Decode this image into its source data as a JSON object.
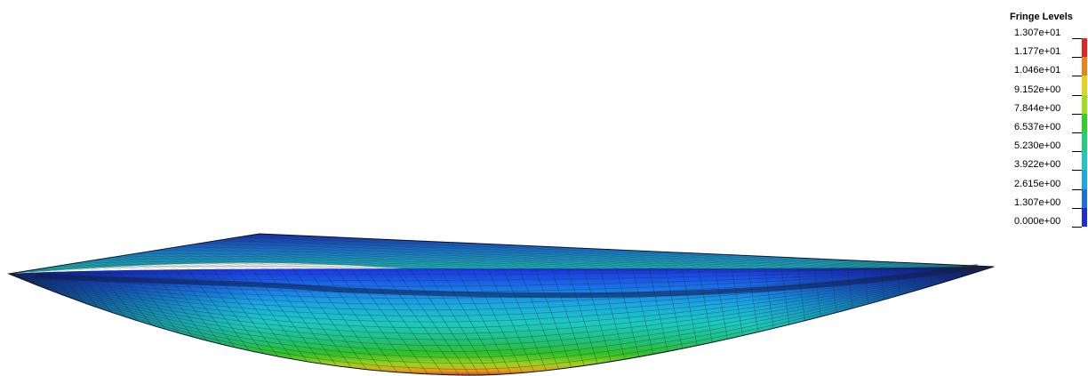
{
  "legend": {
    "title": "Fringe Levels",
    "levels": [
      {
        "label": "1.307e+01",
        "value": 13.07
      },
      {
        "label": "1.177e+01",
        "value": 11.77
      },
      {
        "label": "1.046e+01",
        "value": 10.46
      },
      {
        "label": "9.152e+00",
        "value": 9.152
      },
      {
        "label": "7.844e+00",
        "value": 7.844
      },
      {
        "label": "6.537e+00",
        "value": 6.537
      },
      {
        "label": "5.230e+00",
        "value": 5.23
      },
      {
        "label": "3.922e+00",
        "value": 3.922
      },
      {
        "label": "2.615e+00",
        "value": 2.615
      },
      {
        "label": "1.307e+00",
        "value": 1.307
      },
      {
        "label": "0.000e+00",
        "value": 0.0
      }
    ],
    "band_colors": [
      "#e8241c",
      "#f07f1a",
      "#e6d21e",
      "#9fe01c",
      "#2fd02a",
      "#20d07c",
      "#1ec8c0",
      "#1aa8e0",
      "#1a6ee8",
      "#1a2ee0"
    ]
  },
  "mesh": {
    "edge_color": "#1f2a2a"
  }
}
